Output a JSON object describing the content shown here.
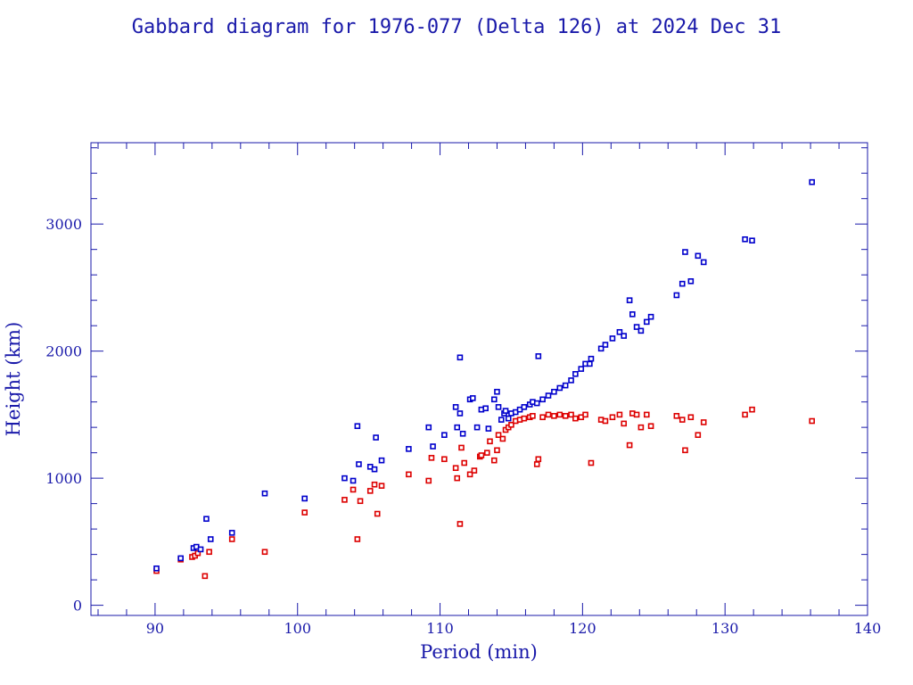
{
  "chart_data": {
    "type": "scatter",
    "title": "Gabbard diagram for 1976-077 (Delta 126) at 2024 Dec 31",
    "xlabel": "Period (min)",
    "ylabel": "Height (km)",
    "xlim": [
      85.5,
      140
    ],
    "ylim": [
      -80,
      3640
    ],
    "xticks": [
      90,
      100,
      110,
      120,
      130,
      140
    ],
    "yticks": [
      0,
      1000,
      2000,
      3000
    ],
    "grid": false,
    "legend": "none",
    "colors": {
      "axis": "#1a1aaa",
      "apogee": "#0000cc",
      "perigee": "#dd0000"
    },
    "series": [
      {
        "values_key": "apogee",
        "x": [
          90.1,
          91.8,
          92.7,
          92.9,
          93.2,
          93.6,
          93.9,
          95.4,
          97.7,
          100.5,
          103.3,
          103.9,
          104.2,
          104.3,
          105.1,
          105.4,
          105.5,
          105.9,
          107.8,
          109.2,
          109.5,
          110.3,
          111.1,
          111.2,
          111.4,
          111.4,
          111.6,
          112.1,
          112.3,
          112.6,
          112.9,
          113.2,
          113.4,
          113.8,
          114.0,
          114.1,
          114.3,
          114.5,
          114.6,
          114.8,
          115.0,
          115.3,
          115.6,
          115.9,
          116.3,
          116.5,
          116.8,
          116.9,
          117.2,
          117.6,
          118.0,
          118.4,
          118.8,
          119.2,
          119.5,
          119.9,
          120.2,
          120.5,
          120.6,
          121.3,
          121.6,
          122.1,
          122.6,
          122.9,
          123.3,
          123.5,
          123.8,
          124.1,
          124.5,
          124.8,
          126.6,
          127.0,
          127.2,
          127.6,
          128.1,
          128.5,
          131.4,
          131.9,
          136.1
        ],
        "y": [
          290,
          370,
          450,
          460,
          440,
          680,
          520,
          570,
          880,
          840,
          1000,
          980,
          1410,
          1110,
          1090,
          1070,
          1320,
          1140,
          1230,
          1400,
          1250,
          1340,
          1560,
          1400,
          1950,
          1510,
          1350,
          1620,
          1630,
          1400,
          1540,
          1550,
          1390,
          1620,
          1680,
          1560,
          1460,
          1510,
          1530,
          1470,
          1510,
          1520,
          1540,
          1560,
          1580,
          1600,
          1590,
          1960,
          1620,
          1650,
          1680,
          1710,
          1730,
          1770,
          1820,
          1860,
          1900,
          1900,
          1940,
          2020,
          2050,
          2100,
          2150,
          2120,
          2400,
          2290,
          2190,
          2160,
          2230,
          2270,
          2440,
          2530,
          2780,
          2550,
          2750,
          2700,
          2880,
          2870,
          3330
        ]
      },
      {
        "values_key": "perigee",
        "x": [
          90.1,
          91.8,
          92.6,
          92.8,
          93.0,
          93.5,
          93.8,
          95.4,
          97.7,
          100.5,
          103.3,
          103.9,
          104.2,
          104.4,
          105.1,
          105.4,
          105.6,
          105.9,
          107.8,
          109.2,
          109.4,
          110.3,
          111.1,
          111.2,
          111.4,
          111.5,
          111.7,
          112.1,
          112.4,
          112.8,
          112.9,
          113.3,
          113.5,
          113.8,
          114.0,
          114.1,
          114.4,
          114.6,
          114.8,
          115.0,
          115.3,
          115.6,
          115.9,
          116.3,
          116.5,
          116.8,
          116.9,
          117.2,
          117.6,
          118.0,
          118.4,
          118.8,
          119.2,
          119.5,
          119.9,
          120.2,
          120.6,
          121.3,
          121.6,
          122.1,
          122.6,
          122.9,
          123.3,
          123.5,
          123.8,
          124.1,
          124.5,
          124.8,
          126.6,
          127.0,
          127.2,
          127.6,
          128.1,
          128.5,
          131.4,
          131.9,
          136.1
        ],
        "y": [
          270,
          360,
          380,
          390,
          410,
          230,
          420,
          520,
          420,
          730,
          830,
          910,
          520,
          820,
          900,
          950,
          720,
          940,
          1030,
          980,
          1160,
          1150,
          1080,
          1000,
          640,
          1240,
          1120,
          1030,
          1060,
          1170,
          1180,
          1200,
          1290,
          1140,
          1220,
          1340,
          1310,
          1380,
          1400,
          1420,
          1450,
          1460,
          1470,
          1480,
          1490,
          1110,
          1150,
          1480,
          1500,
          1490,
          1500,
          1490,
          1500,
          1470,
          1480,
          1500,
          1120,
          1460,
          1450,
          1480,
          1500,
          1430,
          1260,
          1510,
          1500,
          1400,
          1500,
          1410,
          1490,
          1460,
          1220,
          1480,
          1340,
          1440,
          1500,
          1540,
          1450
        ]
      }
    ]
  }
}
